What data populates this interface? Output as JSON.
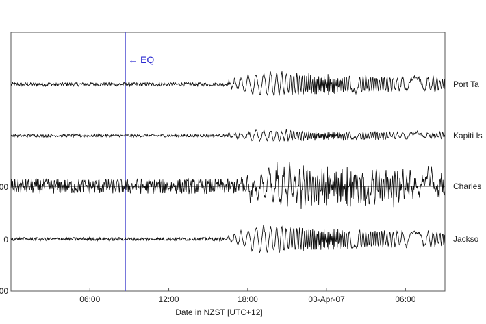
{
  "chart_data": {
    "type": "line",
    "xlabel": "Date in NZST  [UTC+12]",
    "x_ticks": [
      "06:00",
      "12:00",
      "18:00",
      "03-Apr-07",
      "06:00"
    ],
    "x_tick_hours": [
      6,
      12,
      18,
      24,
      30
    ],
    "xlim_hours": [
      0,
      33
    ],
    "y_ticks": [
      "00",
      "0",
      "00"
    ],
    "event": {
      "label": "← EQ",
      "hour": 8.7,
      "color": "#4a4ad0"
    },
    "series": [
      {
        "name": "Port Ta",
        "baseline_noise": 0.35,
        "arrival_hour": 16.5,
        "wave_amp": 1.6
      },
      {
        "name": "Kapiti Is",
        "baseline_noise": 0.25,
        "arrival_hour": 16.5,
        "wave_amp": 0.7
      },
      {
        "name": "Charles",
        "baseline_noise": 1.4,
        "arrival_hour": 17.5,
        "wave_amp": 2.3
      },
      {
        "name": "Jackso",
        "baseline_noise": 0.3,
        "arrival_hour": 16.5,
        "wave_amp": 1.8
      }
    ],
    "grid": false
  }
}
